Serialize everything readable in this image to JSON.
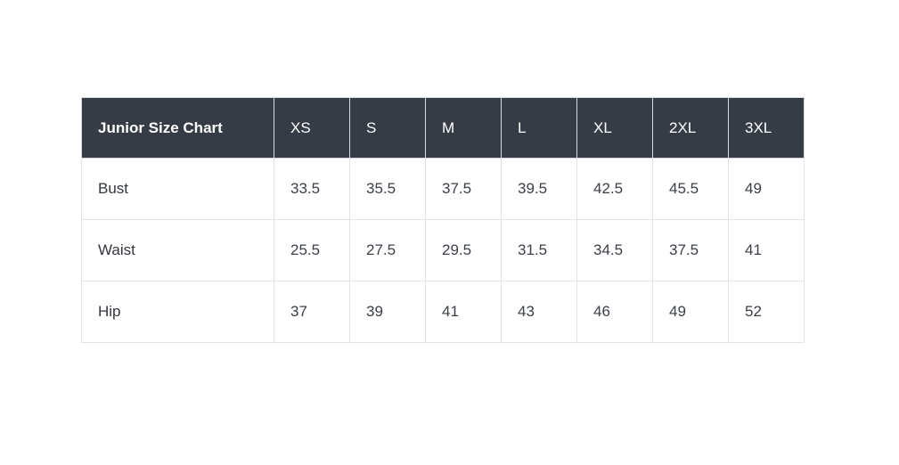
{
  "colors": {
    "header_background": "#363c46",
    "header_text": "#ffffff",
    "body_text": "#3a3f48",
    "border": "#e1e3e6",
    "page_background": "#ffffff"
  },
  "table": {
    "title": "Junior Size Chart",
    "columns": [
      "XS",
      "S",
      "M",
      "L",
      "XL",
      "2XL",
      "3XL"
    ],
    "rows": [
      {
        "label": "Bust",
        "values": [
          "33.5",
          "35.5",
          "37.5",
          "39.5",
          "42.5",
          "45.5",
          "49"
        ]
      },
      {
        "label": "Waist",
        "values": [
          "25.5",
          "27.5",
          "29.5",
          "31.5",
          "34.5",
          "37.5",
          "41"
        ]
      },
      {
        "label": "Hip",
        "values": [
          "37",
          "39",
          "41",
          "43",
          "46",
          "49",
          "52"
        ]
      }
    ]
  },
  "chart_data": {
    "type": "table",
    "title": "Junior Size Chart",
    "columns": [
      "Junior Size Chart",
      "XS",
      "S",
      "M",
      "L",
      "XL",
      "2XL",
      "3XL"
    ],
    "rows": [
      [
        "Bust",
        33.5,
        35.5,
        37.5,
        39.5,
        42.5,
        45.5,
        49
      ],
      [
        "Waist",
        25.5,
        27.5,
        29.5,
        31.5,
        34.5,
        37.5,
        41
      ],
      [
        "Hip",
        37,
        39,
        41,
        43,
        46,
        49,
        52
      ]
    ],
    "layout_hints": {
      "header_style": "dark-slate header row with white text",
      "grid": true,
      "alignment": "left"
    }
  }
}
